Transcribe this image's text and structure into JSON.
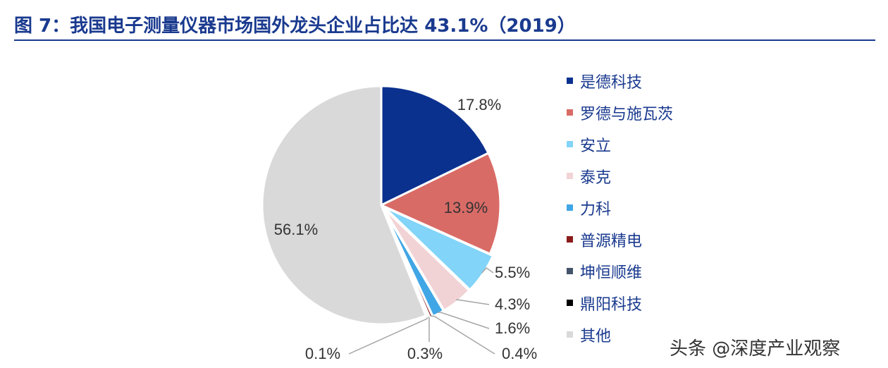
{
  "title": "图 7：我国电子测量仪器市场国外龙头企业占比达 43.1%（2019）",
  "chart_data": {
    "type": "pie",
    "categories": [
      "是德科技",
      "罗德与施瓦茨",
      "安立",
      "泰克",
      "力科",
      "普源精电",
      "坤恒顺维",
      "鼎阳科技",
      "其他"
    ],
    "values": [
      17.8,
      13.9,
      5.5,
      4.3,
      1.6,
      0.4,
      0.3,
      0.1,
      56.1
    ],
    "data_labels": [
      "17.8%",
      "13.9%",
      "5.5%",
      "4.3%",
      "1.6%",
      "0.4%",
      "0.3%",
      "0.1%",
      "56.1%"
    ],
    "colors": [
      "#0b318f",
      "#d96b66",
      "#82d4f8",
      "#f2d3d5",
      "#40a6e5",
      "#8b1a1a",
      "#44546a",
      "#000000",
      "#d9d9d9"
    ],
    "start_angle": "12 o'clock",
    "direction": "clockwise",
    "legend_position": "right"
  },
  "watermark": "头条 @深度产业观察"
}
